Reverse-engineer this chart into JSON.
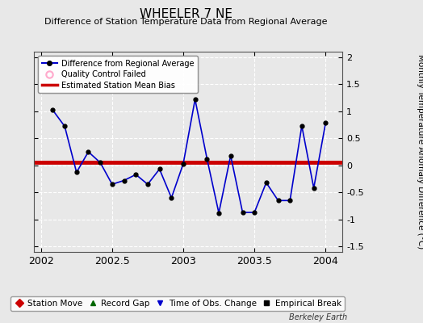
{
  "title": "WHEELER 7 NE",
  "subtitle": "Difference of Station Temperature Data from Regional Average",
  "ylabel_right": "Monthly Temperature Anomaly Difference (°C)",
  "background_color": "#e8e8e8",
  "plot_bg_color": "#e8e8e8",
  "xlim": [
    2001.95,
    2004.12
  ],
  "ylim": [
    -1.6,
    2.1
  ],
  "yticks": [
    -1.5,
    -1.0,
    -0.5,
    0.0,
    0.5,
    1.0,
    1.5,
    2.0
  ],
  "xticks": [
    2002,
    2002.5,
    2003,
    2003.5,
    2004
  ],
  "bias_value": 0.05,
  "x_data": [
    2002.083,
    2002.167,
    2002.25,
    2002.333,
    2002.417,
    2002.5,
    2002.583,
    2002.667,
    2002.75,
    2002.833,
    2002.917,
    2003.0,
    2003.083,
    2003.167,
    2003.25,
    2003.333,
    2003.417,
    2003.5,
    2003.583,
    2003.667,
    2003.75,
    2003.833,
    2003.917,
    2004.0
  ],
  "y_data": [
    1.02,
    0.72,
    -0.13,
    0.25,
    0.05,
    -0.35,
    -0.28,
    -0.17,
    -0.35,
    -0.07,
    -0.6,
    0.03,
    1.22,
    0.12,
    -0.88,
    0.18,
    -0.87,
    -0.87,
    -0.32,
    -0.65,
    -0.65,
    0.73,
    -0.42,
    0.78
  ],
  "line_color": "#0000cc",
  "marker_color": "#000000",
  "bias_color": "#cc0000",
  "watermark": "Berkeley Earth",
  "bottom_legend": [
    {
      "label": "Station Move",
      "color": "#cc0000",
      "marker": "D"
    },
    {
      "label": "Record Gap",
      "color": "#006600",
      "marker": "^"
    },
    {
      "label": "Time of Obs. Change",
      "color": "#0000cc",
      "marker": "v"
    },
    {
      "label": "Empirical Break",
      "color": "#000000",
      "marker": "s"
    }
  ]
}
